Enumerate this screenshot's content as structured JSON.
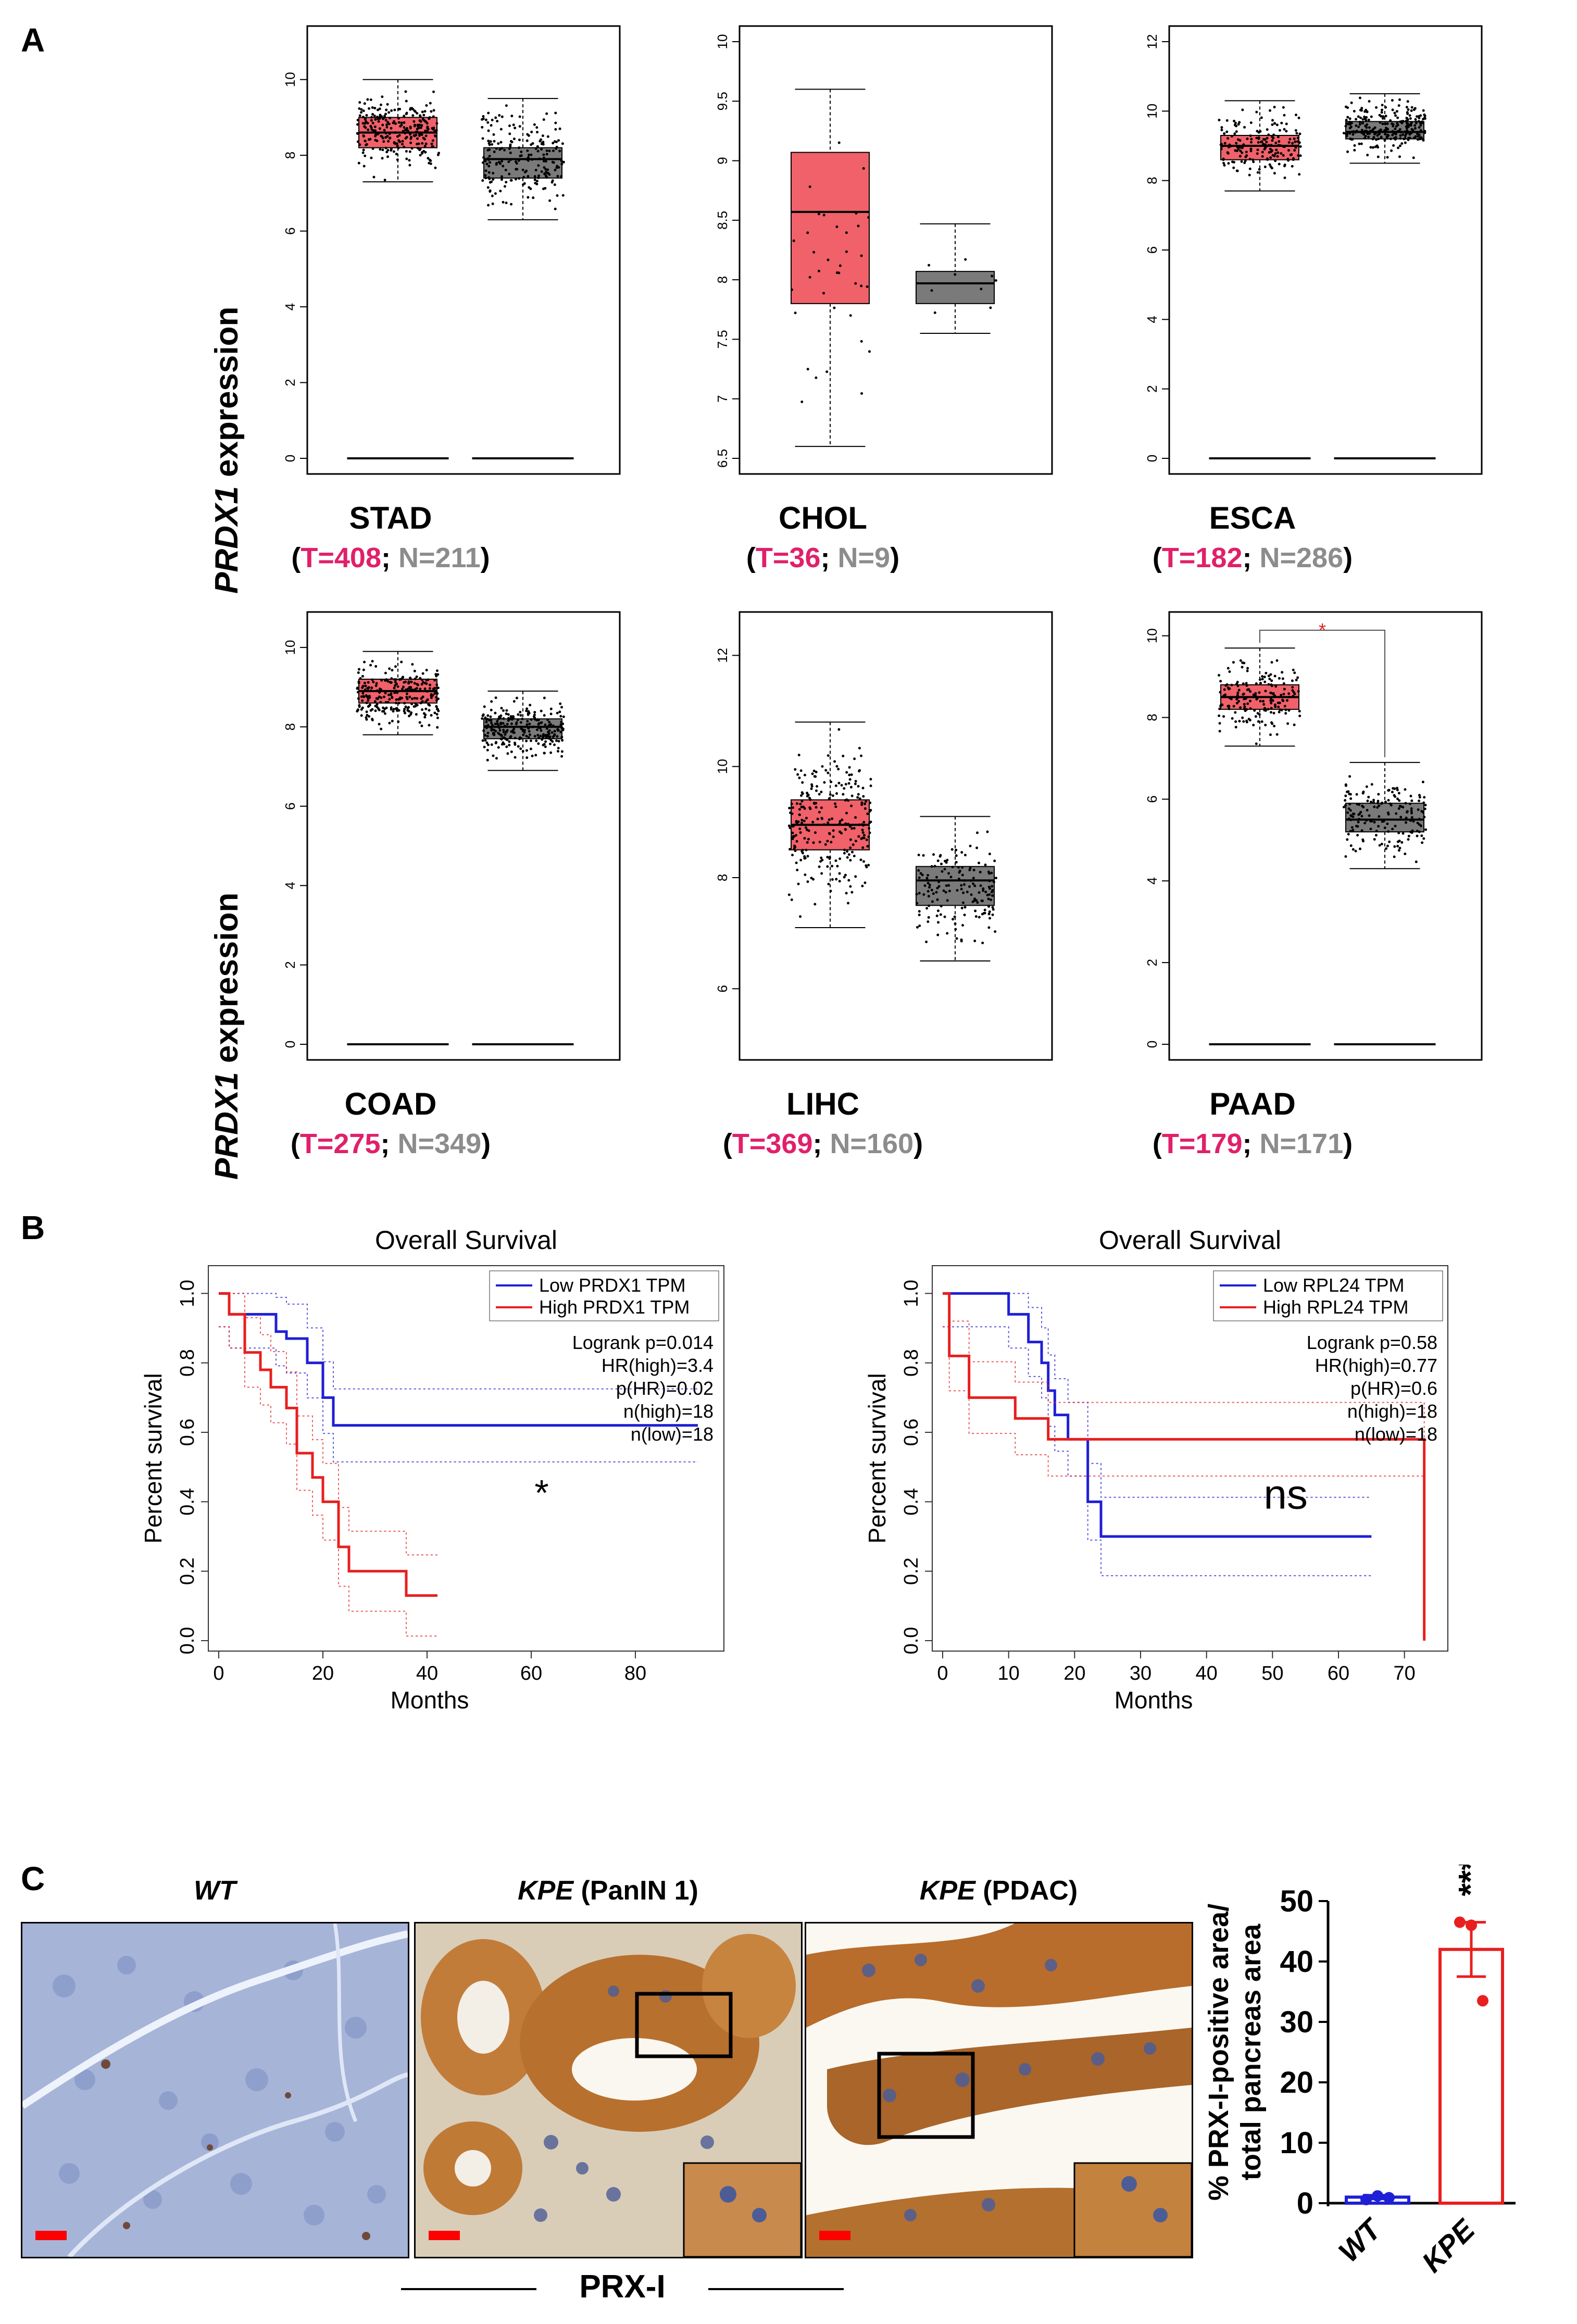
{
  "panel_labels": {
    "a": "A",
    "b": "B",
    "c": "C"
  },
  "y_label_prefix": "PRDX1",
  "y_label_suffix": " expression",
  "colors": {
    "tumor": "#f0616a",
    "normal": "#7a7a7a",
    "tumor_text": "#e0206a",
    "normal_text": "#8c8c8c",
    "low": "#1f1fd6",
    "high": "#e81f1f",
    "prx": "#b5651d"
  },
  "boxplots": [
    {
      "cancer": "STAD",
      "t": "T=408",
      "n": "N=211"
    },
    {
      "cancer": "CHOL",
      "t": "T=36",
      "n": "N=9"
    },
    {
      "cancer": "ESCA",
      "t": "T=182",
      "n": "N=286"
    },
    {
      "cancer": "COAD",
      "t": "T=275",
      "n": "N=349"
    },
    {
      "cancer": "LIHC",
      "t": "T=369",
      "n": "N=160"
    },
    {
      "cancer": "PAAD",
      "t": "T=179",
      "n": "N=171"
    }
  ],
  "chart_data": [
    {
      "type": "box",
      "title": "STAD",
      "ylabel": "PRDX1 expression",
      "ylim": [
        0,
        11
      ],
      "yticks": [
        0,
        2,
        4,
        6,
        8,
        10
      ],
      "series": [
        {
          "name": "Tumor",
          "n": 408,
          "q1": 8.2,
          "median": 8.6,
          "q3": 9.0,
          "whisker_low": 7.3,
          "whisker_high": 10.0
        },
        {
          "name": "Normal",
          "n": 211,
          "q1": 7.4,
          "median": 7.9,
          "q3": 8.2,
          "whisker_low": 6.3,
          "whisker_high": 9.5
        }
      ]
    },
    {
      "type": "box",
      "title": "CHOL",
      "ylim": [
        6.5,
        10.0
      ],
      "yticks": [
        6.5,
        7.0,
        7.5,
        8.0,
        8.5,
        9.0,
        9.5,
        10.0
      ],
      "series": [
        {
          "name": "Tumor",
          "n": 36,
          "q1": 7.8,
          "median": 8.57,
          "q3": 9.07,
          "whisker_low": 6.6,
          "whisker_high": 9.6
        },
        {
          "name": "Normal",
          "n": 9,
          "q1": 7.8,
          "median": 7.97,
          "q3": 8.07,
          "whisker_low": 7.55,
          "whisker_high": 8.47
        }
      ]
    },
    {
      "type": "box",
      "title": "ESCA",
      "ylim": [
        0,
        12
      ],
      "yticks": [
        0,
        2,
        4,
        6,
        8,
        10,
        12
      ],
      "series": [
        {
          "name": "Tumor",
          "n": 182,
          "q1": 8.6,
          "median": 9.0,
          "q3": 9.3,
          "whisker_low": 7.7,
          "whisker_high": 10.3
        },
        {
          "name": "Normal",
          "n": 286,
          "q1": 9.2,
          "median": 9.4,
          "q3": 9.7,
          "whisker_low": 8.5,
          "whisker_high": 10.5
        }
      ]
    },
    {
      "type": "box",
      "title": "COAD",
      "ylim": [
        0,
        10.5
      ],
      "yticks": [
        0,
        2,
        4,
        6,
        8,
        10
      ],
      "series": [
        {
          "name": "Tumor",
          "n": 275,
          "q1": 8.6,
          "median": 8.9,
          "q3": 9.2,
          "whisker_low": 7.8,
          "whisker_high": 9.9
        },
        {
          "name": "Normal",
          "n": 349,
          "q1": 7.7,
          "median": 8.0,
          "q3": 8.2,
          "whisker_low": 6.9,
          "whisker_high": 8.9
        }
      ]
    },
    {
      "type": "box",
      "title": "LIHC",
      "ylim": [
        5.0,
        12.5
      ],
      "yticks": [
        6,
        8,
        10,
        12
      ],
      "series": [
        {
          "name": "Tumor",
          "n": 369,
          "q1": 8.5,
          "median": 8.95,
          "q3": 9.4,
          "whisker_low": 7.1,
          "whisker_high": 10.8
        },
        {
          "name": "Normal",
          "n": 160,
          "q1": 7.5,
          "median": 7.95,
          "q3": 8.2,
          "whisker_low": 6.5,
          "whisker_high": 9.1
        }
      ]
    },
    {
      "type": "box",
      "title": "PAAD",
      "ylim": [
        0,
        10.2
      ],
      "yticks": [
        0,
        2,
        4,
        6,
        8,
        10
      ],
      "significance": "*",
      "series": [
        {
          "name": "Tumor",
          "n": 179,
          "q1": 8.2,
          "median": 8.5,
          "q3": 8.8,
          "whisker_low": 7.3,
          "whisker_high": 9.7
        },
        {
          "name": "Normal",
          "n": 171,
          "q1": 5.2,
          "median": 5.5,
          "q3": 5.9,
          "whisker_low": 4.3,
          "whisker_high": 6.9
        }
      ]
    },
    {
      "type": "line",
      "title": "Overall Survival",
      "xlabel": "Months",
      "ylabel": "Percent survival",
      "xlim": [
        0,
        95
      ],
      "ylim": [
        0,
        1.05
      ],
      "xticks": [
        0,
        20,
        40,
        60,
        80
      ],
      "yticks": [
        0.0,
        0.2,
        0.4,
        0.6,
        0.8,
        1.0
      ],
      "legend": [
        "Low PRDX1 TPM",
        "High PRDX1 TPM"
      ],
      "stats": [
        "Logrank p=0.014",
        "HR(high)=3.4",
        "p(HR)=0.02",
        "n(high)=18",
        "n(low)=18"
      ],
      "annotation": "*",
      "series": [
        {
          "name": "Low PRDX1 TPM",
          "x": [
            0,
            2,
            2,
            11,
            11,
            13,
            13,
            17,
            17,
            20,
            20,
            22,
            22,
            92
          ],
          "y": [
            1.0,
            1.0,
            0.94,
            0.94,
            0.89,
            0.89,
            0.87,
            0.87,
            0.8,
            0.8,
            0.7,
            0.7,
            0.62,
            0.62
          ]
        },
        {
          "name": "High PRDX1 TPM",
          "x": [
            0,
            2,
            2,
            5,
            5,
            8,
            8,
            10,
            10,
            13,
            13,
            15,
            15,
            18,
            18,
            20,
            20,
            23,
            23,
            25,
            25,
            36,
            36,
            42
          ],
          "y": [
            1.0,
            1.0,
            0.94,
            0.94,
            0.83,
            0.83,
            0.78,
            0.78,
            0.73,
            0.73,
            0.67,
            0.67,
            0.54,
            0.54,
            0.47,
            0.47,
            0.4,
            0.4,
            0.27,
            0.27,
            0.2,
            0.2,
            0.13,
            0.13
          ]
        }
      ]
    },
    {
      "type": "line",
      "title": "Overall Survival",
      "xlabel": "Months",
      "ylabel": "Percent survival",
      "xlim": [
        0,
        75
      ],
      "ylim": [
        0,
        1.05
      ],
      "xticks": [
        0,
        10,
        20,
        30,
        40,
        50,
        60,
        70
      ],
      "yticks": [
        0.0,
        0.2,
        0.4,
        0.6,
        0.8,
        1.0
      ],
      "legend": [
        "Low RPL24 TPM",
        "High RPL24 TPM"
      ],
      "stats": [
        "Logrank p=0.58",
        "HR(high)=0.77",
        "p(HR)=0.6",
        "n(high)=18",
        "n(low)=18"
      ],
      "annotation": "ns",
      "series": [
        {
          "name": "Low RPL24 TPM",
          "x": [
            0,
            10,
            10,
            13,
            13,
            15,
            15,
            16,
            16,
            17,
            17,
            19,
            19,
            22,
            22,
            24,
            24,
            65
          ],
          "y": [
            1.0,
            1.0,
            0.94,
            0.94,
            0.86,
            0.86,
            0.8,
            0.8,
            0.72,
            0.72,
            0.65,
            0.65,
            0.58,
            0.58,
            0.4,
            0.4,
            0.3,
            0.3
          ]
        },
        {
          "name": "High RPL24 TPM",
          "x": [
            0,
            1,
            1,
            4,
            4,
            11,
            11,
            16,
            16,
            22,
            22,
            73,
            73
          ],
          "y": [
            1.0,
            1.0,
            0.82,
            0.82,
            0.7,
            0.7,
            0.64,
            0.64,
            0.58,
            0.58,
            0.58,
            0.58,
            0.0
          ]
        }
      ]
    },
    {
      "type": "bar",
      "ylabel": "% PRX-I-positive area/ total pancreas area",
      "categories": [
        "WT",
        "KPE"
      ],
      "values": [
        1.0,
        42.0
      ],
      "errors": [
        0.3,
        4.5
      ],
      "points": [
        [
          0.6,
          1.2,
          0.9
        ],
        [
          46.5,
          46.0,
          33.5
        ]
      ],
      "ylim": [
        0,
        50
      ],
      "yticks": [
        0,
        10,
        20,
        30,
        40,
        50
      ],
      "significance": "***"
    }
  ],
  "micrographs": [
    {
      "title": "WT"
    },
    {
      "title_italic": "KPE",
      "title_rest": " (PanIN 1)"
    },
    {
      "title_italic": "KPE",
      "title_rest": " (PDAC)"
    }
  ],
  "stain_label": "PRX-I"
}
